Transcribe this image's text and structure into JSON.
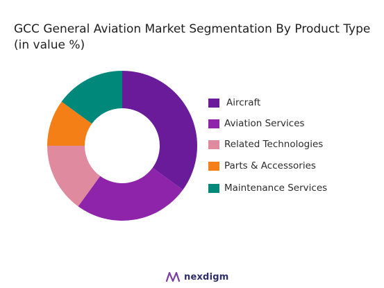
{
  "chart_data": {
    "type": "pie",
    "variant": "donut",
    "title": "GCC General Aviation Market Segmentation By Product Type (in value %)",
    "categories": [
      "Aircraft",
      "Aviation Services",
      "Related Technologies",
      "Parts & Accessories",
      "Maintenance Services"
    ],
    "values": [
      35,
      25,
      15,
      10,
      15
    ],
    "colors": [
      "#6a1b9a",
      "#8e24aa",
      "#e08aa0",
      "#f57f17",
      "#00897b"
    ],
    "legend_position": "right"
  },
  "brand": {
    "name": "nexdigm",
    "logo_icon": "nexdigm-logo-icon"
  }
}
